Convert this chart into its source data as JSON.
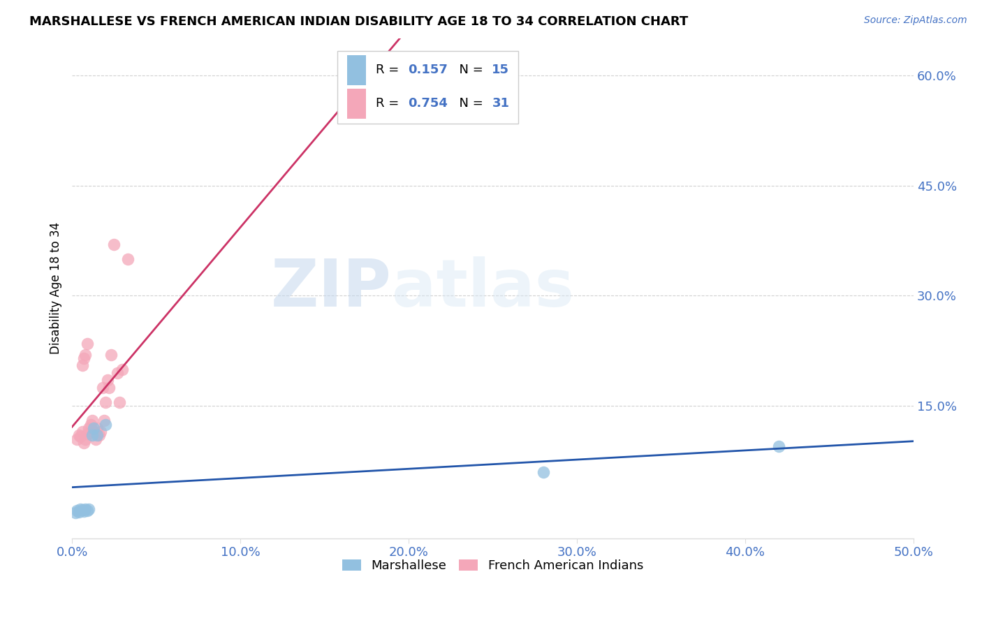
{
  "title": "MARSHALLESE VS FRENCH AMERICAN INDIAN DISABILITY AGE 18 TO 34 CORRELATION CHART",
  "source": "Source: ZipAtlas.com",
  "ylabel": "Disability Age 18 to 34",
  "xlim": [
    0.0,
    0.5
  ],
  "ylim": [
    -0.03,
    0.65
  ],
  "xticks": [
    0.0,
    0.1,
    0.2,
    0.3,
    0.4,
    0.5
  ],
  "yticks": [
    0.15,
    0.3,
    0.45,
    0.6
  ],
  "ytick_labels": [
    "15.0%",
    "30.0%",
    "45.0%",
    "60.0%"
  ],
  "xtick_labels": [
    "0.0%",
    "10.0%",
    "20.0%",
    "30.0%",
    "40.0%",
    "50.0%"
  ],
  "marshallese_color": "#92C0E0",
  "french_color": "#F4A7B9",
  "marshallese_line_color": "#2255AA",
  "french_line_color": "#CC3366",
  "marshallese_R": 0.157,
  "marshallese_N": 15,
  "french_R": 0.754,
  "french_N": 31,
  "watermark_zip": "ZIP",
  "watermark_atlas": "atlas",
  "grid_color": "#cccccc",
  "blue_text": "#4472C4",
  "marshallese_x": [
    0.002,
    0.003,
    0.004,
    0.005,
    0.006,
    0.007,
    0.008,
    0.009,
    0.01,
    0.012,
    0.013,
    0.015,
    0.02,
    0.28,
    0.42
  ],
  "marshallese_y": [
    0.005,
    0.008,
    0.006,
    0.01,
    0.009,
    0.007,
    0.01,
    0.008,
    0.01,
    0.11,
    0.12,
    0.11,
    0.125,
    0.06,
    0.095
  ],
  "french_x": [
    0.003,
    0.004,
    0.005,
    0.006,
    0.007,
    0.008,
    0.009,
    0.01,
    0.011,
    0.012,
    0.013,
    0.014,
    0.015,
    0.016,
    0.017,
    0.018,
    0.019,
    0.02,
    0.021,
    0.022,
    0.023,
    0.025,
    0.027,
    0.028,
    0.03,
    0.033,
    0.006,
    0.007,
    0.008,
    0.009,
    0.17
  ],
  "french_y": [
    0.105,
    0.11,
    0.108,
    0.115,
    0.1,
    0.105,
    0.112,
    0.12,
    0.125,
    0.13,
    0.115,
    0.105,
    0.12,
    0.11,
    0.115,
    0.175,
    0.13,
    0.155,
    0.185,
    0.175,
    0.22,
    0.37,
    0.195,
    0.155,
    0.2,
    0.35,
    0.205,
    0.215,
    0.22,
    0.235,
    0.56
  ]
}
